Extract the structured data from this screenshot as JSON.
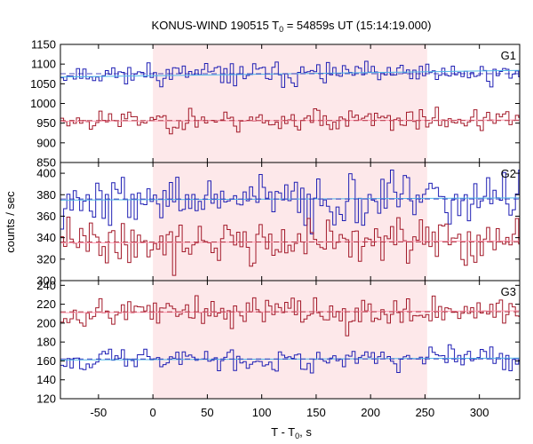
{
  "chart_data": {
    "type": "line",
    "title": {
      "prefix": "KONUS-WIND 190515 T",
      "sub": "0",
      "suffix": " = 54859s UT (15:14:19.000)"
    },
    "xlabel": {
      "prefix": "T - T",
      "sub": "0",
      "suffix": ", s"
    },
    "ylabel": "counts / sec",
    "xlim": [
      -85,
      337
    ],
    "x_ticks": [
      -50,
      0,
      50,
      100,
      150,
      200,
      250,
      300
    ],
    "highlight_interval": [
      0,
      252
    ],
    "highlight_color": "#fde8ea",
    "bin_width": 2.944,
    "colors": {
      "blue": "#1f1fb4",
      "red": "#a31a2a",
      "background_fit": "#4fb8e8",
      "red_fit": "#ff9ab0"
    },
    "panels": [
      {
        "label": "G1",
        "ylim": [
          850,
          1150
        ],
        "y_ticks": [
          850,
          900,
          950,
          1000,
          1050,
          1100,
          1150
        ],
        "series": [
          {
            "color": "blue",
            "mean": 1075,
            "noise": 14,
            "seed": 11,
            "background": [
              1067,
              1084
            ]
          },
          {
            "color": "red",
            "mean": 958,
            "noise": 14,
            "seed": 23,
            "background": [
              955,
              958
            ]
          }
        ]
      },
      {
        "label": "G2",
        "ylim": [
          300,
          410
        ],
        "y_ticks": [
          300,
          320,
          340,
          360,
          380,
          400
        ],
        "series": [
          {
            "color": "blue",
            "mean": 375,
            "noise": 12,
            "seed": 37,
            "background": [
              375,
              377
            ]
          },
          {
            "color": "red",
            "mean": 336,
            "noise": 11,
            "seed": 41,
            "background": [
              335,
              337
            ]
          }
        ]
      },
      {
        "label": "G3",
        "ylim": [
          120,
          245
        ],
        "y_ticks": [
          120,
          140,
          160,
          180,
          200,
          220,
          240
        ],
        "series": [
          {
            "color": "red",
            "mean": 212,
            "noise": 8,
            "seed": 53,
            "background": [
              211,
              213
            ]
          },
          {
            "color": "blue",
            "mean": 162,
            "noise": 6,
            "seed": 67,
            "background": [
              161,
              163
            ]
          }
        ]
      }
    ]
  }
}
